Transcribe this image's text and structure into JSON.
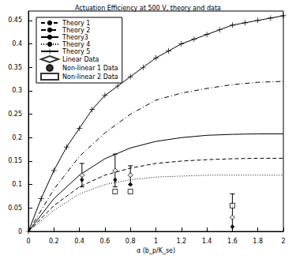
{
  "chart_data": {
    "type": "line",
    "title": "Actuation Efficiency at 500 V, theory and data",
    "x_label": "α (b_p/K_se)",
    "xlim": [
      0,
      2
    ],
    "xticks": [
      0,
      0.2,
      0.4,
      0.6,
      0.8,
      1,
      1.2,
      1.4,
      1.6,
      1.8,
      2
    ],
    "ylim": [
      0,
      0.47
    ],
    "yticks": [
      0,
      0.05,
      0.1,
      0.15,
      0.2,
      0.25,
      0.3,
      0.35,
      0.4,
      0.45
    ],
    "grid": false,
    "legend": "upper left",
    "series": [
      {
        "name": "Theory 1",
        "type": "line",
        "color": "#000000",
        "line_style": "dashed",
        "x": [
          0,
          0.2,
          0.4,
          0.6,
          0.8,
          1,
          1.2,
          1.4,
          1.6,
          1.8,
          2
        ],
        "values": [
          0,
          0.055,
          0.095,
          0.12,
          0.135,
          0.145,
          0.15,
          0.153,
          0.155,
          0.156,
          0.156
        ]
      },
      {
        "name": "Theory 2",
        "type": "line",
        "color": "#000000",
        "line_style": "dashdot",
        "x": [
          0,
          0.2,
          0.4,
          0.6,
          0.8,
          1,
          1.2,
          1.4,
          1.6,
          1.8,
          2
        ],
        "values": [
          0,
          0.09,
          0.16,
          0.21,
          0.25,
          0.28,
          0.295,
          0.305,
          0.313,
          0.318,
          0.32
        ]
      },
      {
        "name": "Theory3",
        "type": "line",
        "color": "#000000",
        "line_style": "solid",
        "x": [
          0,
          0.2,
          0.4,
          0.6,
          0.8,
          1,
          1.2,
          1.4,
          1.6,
          1.8,
          2
        ],
        "values": [
          0,
          0.07,
          0.12,
          0.155,
          0.178,
          0.192,
          0.2,
          0.205,
          0.207,
          0.208,
          0.208
        ]
      },
      {
        "name": "Theory 4",
        "type": "line",
        "color": "#000000",
        "line_style": "dotted",
        "x": [
          0,
          0.2,
          0.4,
          0.6,
          0.8,
          1,
          1.2,
          1.4,
          1.6,
          1.8,
          2
        ],
        "values": [
          0,
          0.045,
          0.08,
          0.1,
          0.11,
          0.116,
          0.118,
          0.12,
          0.12,
          0.12,
          0.12
        ]
      },
      {
        "name": "Theory 5",
        "type": "line",
        "color": "#000000",
        "line_style": "solid",
        "marker": "plus",
        "x": [
          0,
          0.1,
          0.2,
          0.3,
          0.4,
          0.5,
          0.6,
          0.7,
          0.8,
          0.9,
          1,
          1.1,
          1.2,
          1.3,
          1.4,
          1.5,
          1.6,
          1.7,
          1.8,
          1.9,
          2
        ],
        "values": [
          0,
          0.07,
          0.13,
          0.18,
          0.22,
          0.26,
          0.29,
          0.31,
          0.33,
          0.35,
          0.37,
          0.385,
          0.4,
          0.41,
          0.42,
          0.43,
          0.44,
          0.445,
          0.45,
          0.455,
          0.46
        ]
      },
      {
        "name": "Linear Data",
        "type": "scatter",
        "color": "#000000",
        "marker": "diamond",
        "x": [
          0.42,
          0.68,
          0.8,
          1.6
        ],
        "values": [
          0.12,
          0.13,
          0.12,
          0.03
        ],
        "errors": [
          0.025,
          0.035,
          0.02,
          0.05
        ]
      },
      {
        "name": "Non-linear 1 Data",
        "type": "scatter",
        "color": "#000000",
        "marker": "point",
        "x": [
          0.42,
          0.68,
          0.8,
          1.6
        ],
        "values": [
          0.11,
          0.11,
          0.1,
          0.01
        ]
      },
      {
        "name": "Non-linear 2 Data",
        "type": "scatter",
        "color": "#000000",
        "marker": "square",
        "x": [
          0.68,
          0.8,
          1.6
        ],
        "values": [
          0.085,
          0.085,
          0.055
        ]
      }
    ]
  }
}
